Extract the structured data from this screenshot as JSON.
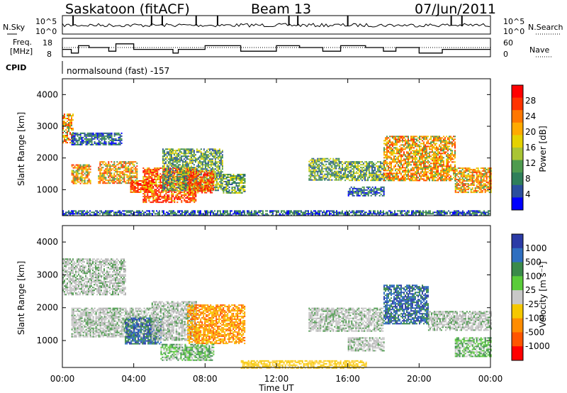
{
  "header": {
    "station": "Saskatoon (fitACF)",
    "beam": "Beam 13",
    "date": "07/Jun/2011"
  },
  "noise_panel": {
    "left_label": "N.Sky",
    "left_ticks": [
      "10^5",
      "10^0"
    ],
    "right_label": "N.Search",
    "right_ticks": [
      "10^5",
      "10^0"
    ]
  },
  "freq_panel": {
    "left_label_line1": "Freq.",
    "left_label_line2": "[MHz]",
    "left_ticks": [
      "18",
      "8"
    ],
    "right_label": "Nave",
    "right_ticks": [
      "60",
      "0"
    ]
  },
  "cpid_panel": {
    "label": "CPID",
    "text": "normalsound (fast) -157"
  },
  "axis": {
    "ylabel": "Slant Range [km]",
    "yticks": [
      "4000",
      "3000",
      "2000",
      "1000"
    ],
    "xlabel": "Time UT",
    "xticks": [
      "00:00",
      "04:00",
      "08:00",
      "12:00",
      "16:00",
      "20:00",
      "00:00"
    ]
  },
  "power_colorbar": {
    "label": "Power [dB]",
    "ticks": [
      "28",
      "24",
      "20",
      "16",
      "12",
      "8",
      "4"
    ],
    "colors": [
      "#ff0000",
      "#ff3300",
      "#ff7700",
      "#ffaa00",
      "#e5d200",
      "#a9c534",
      "#4f9b4f",
      "#2f7f5a",
      "#2b4f9e",
      "#0000ff"
    ]
  },
  "velocity_colorbar": {
    "label": "Velocity [m s⁻¹]",
    "ticks": [
      "1000",
      "500",
      "100",
      "25",
      "-25",
      "-100",
      "-500",
      "-1000"
    ],
    "colors": [
      "#2b3ba6",
      "#2f6fc0",
      "#3a8a4a",
      "#5acc3a",
      "#c8c8c8",
      "#f5c800",
      "#ff8c00",
      "#ff5500",
      "#ff0000"
    ]
  },
  "chart_data": {
    "type": "heatmap",
    "title": "Saskatoon (fitACF)",
    "xlabel": "Time UT",
    "ylabel": "Slant Range [km]",
    "xlim_hours": [
      0,
      24
    ],
    "ylim_km": [
      180,
      4500
    ],
    "frequency_steps": [
      {
        "t": 0.0,
        "mhz": 12
      },
      {
        "t": 0.5,
        "mhz": 10
      },
      {
        "t": 0.9,
        "mhz": 14
      },
      {
        "t": 1.5,
        "mhz": 13
      },
      {
        "t": 2.6,
        "mhz": 11
      },
      {
        "t": 3.0,
        "mhz": 15
      },
      {
        "t": 4.0,
        "mhz": 12
      },
      {
        "t": 6.2,
        "mhz": 10
      },
      {
        "t": 6.5,
        "mhz": 12
      },
      {
        "t": 8.0,
        "mhz": 14
      },
      {
        "t": 10.0,
        "mhz": 11
      },
      {
        "t": 12.0,
        "mhz": 14
      },
      {
        "t": 13.3,
        "mhz": 13
      },
      {
        "t": 14.6,
        "mhz": 11
      },
      {
        "t": 15.6,
        "mhz": 14
      },
      {
        "t": 17.0,
        "mhz": 13
      },
      {
        "t": 18.0,
        "mhz": 11
      },
      {
        "t": 18.7,
        "mhz": 13
      },
      {
        "t": 20.0,
        "mhz": 10
      },
      {
        "t": 21.3,
        "mhz": 12
      },
      {
        "t": 23.5,
        "mhz": 12
      }
    ],
    "power_regions": [
      {
        "t0": 0.0,
        "t1": 0.6,
        "r0": 2500,
        "r1": 3400,
        "level": "orange"
      },
      {
        "t0": 0.5,
        "t1": 3.3,
        "r0": 2400,
        "r1": 2800,
        "level": "blue"
      },
      {
        "t0": 0.5,
        "t1": 1.6,
        "r0": 1200,
        "r1": 1800,
        "level": "orange"
      },
      {
        "t0": 2.0,
        "t1": 4.2,
        "r0": 1200,
        "r1": 1900,
        "level": "orange"
      },
      {
        "t0": 3.8,
        "t1": 5.0,
        "r0": 900,
        "r1": 1300,
        "level": "red"
      },
      {
        "t0": 4.5,
        "t1": 7.5,
        "r0": 600,
        "r1": 1700,
        "level": "red"
      },
      {
        "t0": 5.6,
        "t1": 9.0,
        "r0": 1000,
        "r1": 2300,
        "level": "green"
      },
      {
        "t0": 7.0,
        "t1": 8.5,
        "r0": 900,
        "r1": 1600,
        "level": "red"
      },
      {
        "t0": 9.0,
        "t1": 10.2,
        "r0": 900,
        "r1": 1500,
        "level": "green"
      },
      {
        "t0": 13.8,
        "t1": 15.5,
        "r0": 1300,
        "r1": 2000,
        "level": "green"
      },
      {
        "t0": 15.5,
        "t1": 18.0,
        "r0": 1300,
        "r1": 1900,
        "level": "green"
      },
      {
        "t0": 16.0,
        "t1": 18.0,
        "r0": 800,
        "r1": 1100,
        "level": "blue"
      },
      {
        "t0": 18.0,
        "t1": 22.0,
        "r0": 1300,
        "r1": 2700,
        "level": "orange"
      },
      {
        "t0": 22.0,
        "t1": 24.0,
        "r0": 900,
        "r1": 1700,
        "level": "orange"
      },
      {
        "t0": 0.0,
        "t1": 24.0,
        "r0": 180,
        "r1": 350,
        "level": "blue"
      }
    ],
    "velocity_regions": [
      {
        "t0": 0.0,
        "t1": 3.5,
        "r0": 2400,
        "r1": 3500,
        "level": "gray"
      },
      {
        "t0": 0.5,
        "t1": 5.0,
        "r0": 1100,
        "r1": 2000,
        "level": "gray"
      },
      {
        "t0": 3.5,
        "t1": 5.5,
        "r0": 900,
        "r1": 1700,
        "level": "blue"
      },
      {
        "t0": 5.0,
        "t1": 7.5,
        "r0": 1000,
        "r1": 2200,
        "level": "gray"
      },
      {
        "t0": 7.0,
        "t1": 10.2,
        "r0": 900,
        "r1": 2100,
        "level": "orange"
      },
      {
        "t0": 5.5,
        "t1": 8.5,
        "r0": 400,
        "r1": 900,
        "level": "green"
      },
      {
        "t0": 13.8,
        "t1": 18.0,
        "r0": 1300,
        "r1": 2000,
        "level": "gray"
      },
      {
        "t0": 16.0,
        "t1": 18.0,
        "r0": 700,
        "r1": 1100,
        "level": "gray"
      },
      {
        "t0": 18.0,
        "t1": 20.5,
        "r0": 1500,
        "r1": 2700,
        "level": "blue"
      },
      {
        "t0": 20.5,
        "t1": 24.0,
        "r0": 1300,
        "r1": 1900,
        "level": "gray"
      },
      {
        "t0": 22.0,
        "t1": 24.0,
        "r0": 500,
        "r1": 1100,
        "level": "green"
      },
      {
        "t0": 10.0,
        "t1": 17.0,
        "r0": 180,
        "r1": 400,
        "level": "yellow"
      }
    ]
  }
}
